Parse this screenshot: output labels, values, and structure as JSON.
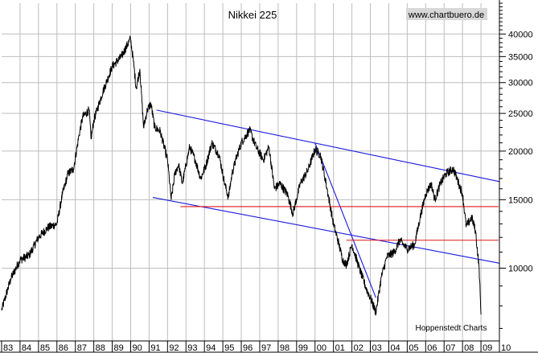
{
  "chart_data": {
    "type": "line",
    "title": "Nikkei 225",
    "watermark": "www.chartbuero.de",
    "source": "Hoppenstedt Charts",
    "y_scale": "log",
    "ylim": [
      6500,
      48000
    ],
    "xlim": [
      1983.0,
      2010.0
    ],
    "y_ticks": [
      10000,
      15000,
      20000,
      25000,
      30000,
      35000,
      40000
    ],
    "y_tick_labels": [
      "10000",
      "15000",
      "20000",
      "25000",
      "30000",
      "35000",
      "40000"
    ],
    "x_tick_labels": [
      "83",
      "84",
      "85",
      "86",
      "87",
      "88",
      "89",
      "90",
      "91",
      "92",
      "93",
      "94",
      "95",
      "96",
      "97",
      "98",
      "99",
      "00",
      "01",
      "02",
      "03",
      "04",
      "05",
      "06",
      "07",
      "08",
      "09",
      "10"
    ],
    "grid": true,
    "colors": {
      "price": "#000000",
      "channel": "#1a1adc",
      "support": "#e01818",
      "grid": "#bdbdbd",
      "watermark_bg": "#d8d8d8"
    },
    "series": [
      {
        "x": [
          1983.0,
          1983.5,
          1984.0,
          1984.5,
          1985.0,
          1985.5,
          1986.0,
          1986.3,
          1986.6,
          1986.9,
          1987.2,
          1987.4,
          1987.75,
          1987.85,
          1988.0,
          1988.5,
          1989.0,
          1989.5,
          1989.99,
          1990.15,
          1990.3,
          1990.5,
          1990.7,
          1990.9,
          1991.1,
          1991.3,
          1991.6,
          1992.0,
          1992.2,
          1992.4,
          1992.6,
          1992.8,
          1993.2,
          1993.5,
          1993.8,
          1994.1,
          1994.4,
          1994.8,
          1995.1,
          1995.3,
          1995.5,
          1995.7,
          1996.0,
          1996.45,
          1996.8,
          1997.2,
          1997.5,
          1997.8,
          1998.1,
          1998.5,
          1998.8,
          1999.2,
          1999.6,
          2000.0,
          2000.3,
          2000.6,
          2001.0,
          2001.3,
          2001.5,
          2001.7,
          2002.0,
          2002.4,
          2002.8,
          2003.0,
          2003.3,
          2003.6,
          2003.9,
          2004.3,
          2004.6,
          2005.0,
          2005.4,
          2005.7,
          2006.0,
          2006.3,
          2006.5,
          2006.8,
          2007.1,
          2007.5,
          2007.7,
          2008.0,
          2008.2,
          2008.5,
          2008.7,
          2008.9,
          2009.0
        ],
        "y": [
          7800,
          9400,
          10500,
          10800,
          12000,
          12700,
          13000,
          15500,
          17500,
          18000,
          22000,
          24500,
          25500,
          21500,
          24000,
          28500,
          33000,
          35000,
          38915,
          34000,
          29000,
          32500,
          23000,
          25500,
          26500,
          23000,
          22500,
          19000,
          15000,
          17500,
          18500,
          16500,
          20500,
          19000,
          17000,
          18500,
          21000,
          19500,
          16500,
          15200,
          17500,
          19000,
          21000,
          22666,
          20500,
          19000,
          20500,
          16000,
          16500,
          15500,
          13800,
          16500,
          17800,
          20200,
          19500,
          16500,
          13000,
          11500,
          10500,
          10200,
          11500,
          10000,
          8800,
          8400,
          7700,
          9500,
          10700,
          11000,
          11800,
          11200,
          11500,
          13500,
          15500,
          16500,
          15000,
          16500,
          17500,
          18000,
          17000,
          15500,
          12800,
          13500,
          12500,
          10000,
          7600
        ]
      }
    ],
    "lines": [
      {
        "kind": "channel upper",
        "x": [
          1991.4,
          2010.0
        ],
        "y": [
          25500,
          16700
        ]
      },
      {
        "kind": "channel lower",
        "x": [
          1991.2,
          2010.0
        ],
        "y": [
          15200,
          10300
        ]
      },
      {
        "kind": "decline",
        "x": [
          2000.0,
          2003.3
        ],
        "y": [
          21000,
          8400
        ]
      },
      {
        "kind": "support",
        "x": [
          1992.7,
          2009.95
        ],
        "y": [
          14400,
          14400
        ]
      },
      {
        "kind": "support",
        "x": [
          2001.7,
          2009.95
        ],
        "y": [
          11800,
          11800
        ]
      }
    ]
  }
}
